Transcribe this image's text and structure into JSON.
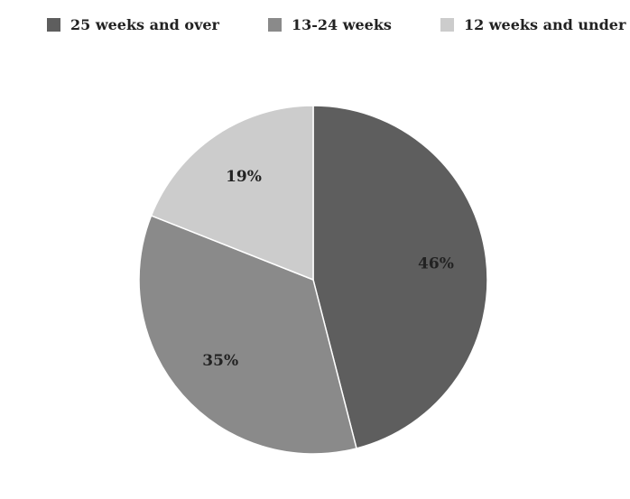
{
  "chart_data": {
    "type": "pie",
    "title": "",
    "legend_position": "top",
    "slices": [
      {
        "name": "25 weeks and over",
        "value": 46,
        "label": "46%",
        "color": "#5e5e5e"
      },
      {
        "name": "13-24 weeks",
        "value": 35,
        "label": "35%",
        "color": "#8a8a8a"
      },
      {
        "name": "12 weeks and under",
        "value": 19,
        "label": "19%",
        "color": "#cccccc"
      }
    ]
  }
}
